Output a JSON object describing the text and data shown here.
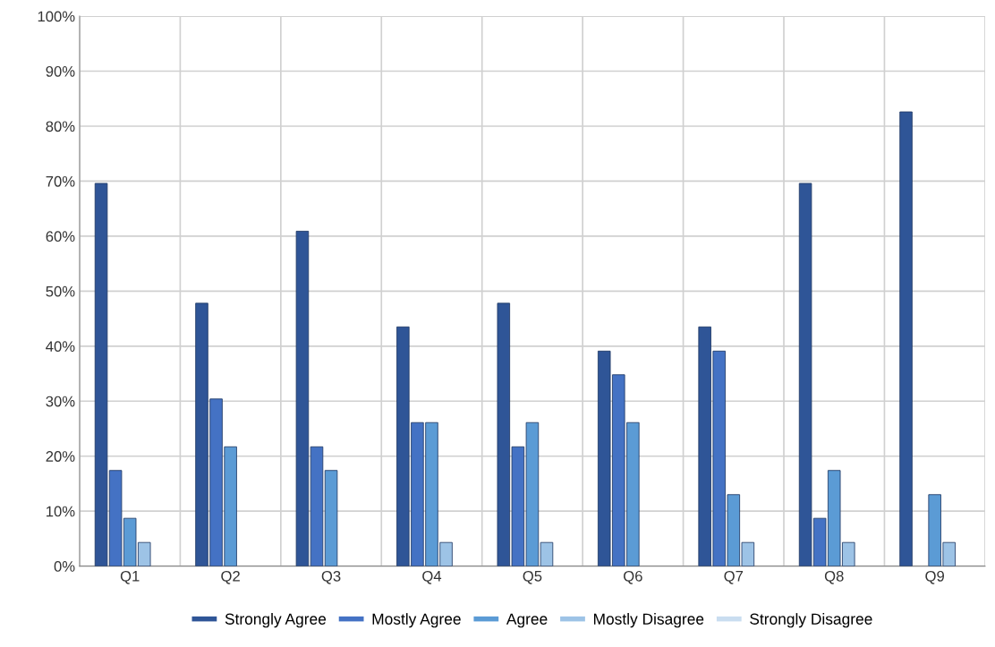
{
  "chart_data": {
    "type": "bar",
    "categories": [
      "Q1",
      "Q2",
      "Q3",
      "Q4",
      "Q5",
      "Q6",
      "Q7",
      "Q8",
      "Q9"
    ],
    "series": [
      {
        "name": "Strongly Agree",
        "color": "#2f5597",
        "values": [
          69.6,
          47.8,
          60.9,
          43.5,
          47.8,
          39.1,
          43.5,
          69.6,
          82.6
        ]
      },
      {
        "name": "Mostly Agree",
        "color": "#4472c4",
        "values": [
          17.4,
          30.4,
          21.7,
          26.1,
          21.7,
          34.8,
          39.1,
          8.7,
          null
        ]
      },
      {
        "name": "Agree",
        "color": "#5b9bd5",
        "values": [
          8.7,
          21.7,
          17.4,
          26.1,
          26.1,
          26.1,
          13.0,
          17.4,
          13.0
        ]
      },
      {
        "name": "Mostly Disagree",
        "color": "#9dc3e6",
        "values": [
          4.3,
          null,
          null,
          4.3,
          4.3,
          null,
          4.3,
          4.3,
          4.3
        ]
      },
      {
        "name": "Strongly Disagree",
        "color": "#c9ddf0",
        "values": [
          null,
          null,
          null,
          null,
          null,
          null,
          null,
          null,
          null
        ]
      }
    ],
    "ylim": [
      0,
      100
    ],
    "yticks": [
      {
        "value": 0,
        "label": "0%"
      },
      {
        "value": 10,
        "label": "10%"
      },
      {
        "value": 20,
        "label": "20%"
      },
      {
        "value": 30,
        "label": "30%"
      },
      {
        "value": 40,
        "label": "40%"
      },
      {
        "value": 50,
        "label": "50%"
      },
      {
        "value": 60,
        "label": "60%"
      },
      {
        "value": 70,
        "label": "70%"
      },
      {
        "value": 80,
        "label": "80%"
      },
      {
        "value": 90,
        "label": "90%"
      },
      {
        "value": 100,
        "label": "100%"
      }
    ],
    "grid": true,
    "legend": "bottom"
  }
}
